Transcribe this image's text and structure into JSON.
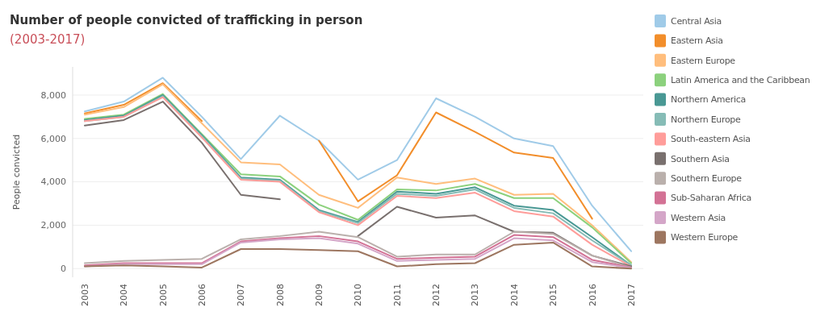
{
  "chart_data": {
    "type": "line",
    "title": "Number of people convicted of trafficking in person",
    "subtitle": "(2003-2017)",
    "ylabel": "People convicted",
    "categories": [
      "2003",
      "2004",
      "2005",
      "2006",
      "2007",
      "2008",
      "2009",
      "2010",
      "2011",
      "2012",
      "2013",
      "2014",
      "2015",
      "2016",
      "2017"
    ],
    "ylim": [
      -400,
      9300
    ],
    "yticks": [
      {
        "value": 0,
        "label": "0"
      },
      {
        "value": 2000,
        "label": "2,000"
      },
      {
        "value": 4000,
        "label": "4,000"
      },
      {
        "value": 6000,
        "label": "6,000"
      },
      {
        "value": 8000,
        "label": "8,000"
      }
    ],
    "grid": "y",
    "legend": "right",
    "marker": "none",
    "line_style": "solid",
    "series": [
      {
        "name": "Central Asia",
        "color": "#a0cbe8",
        "values": [
          7250,
          7700,
          8800,
          7000,
          5050,
          7050,
          5900,
          4100,
          5000,
          7850,
          7000,
          6000,
          5650,
          2900,
          800
        ]
      },
      {
        "name": "Eastern Asia",
        "color": "#f28e2b",
        "values": [
          7150,
          7550,
          8550,
          6800,
          null,
          null,
          5900,
          3100,
          4300,
          7200,
          6300,
          5350,
          5100,
          2300,
          null
        ]
      },
      {
        "name": "Eastern Europe",
        "color": "#ffbe7d",
        "values": [
          7100,
          7450,
          8500,
          6700,
          4900,
          4800,
          3400,
          2800,
          4200,
          3900,
          4150,
          3400,
          3450,
          2000,
          300
        ]
      },
      {
        "name": "Latin America and the Caribbean",
        "color": "#8cd17d",
        "values": [
          6900,
          7100,
          8050,
          6200,
          4350,
          4250,
          2950,
          2250,
          3650,
          3600,
          3900,
          3250,
          3250,
          1900,
          250
        ]
      },
      {
        "name": "Northern America",
        "color": "#499894",
        "values": [
          6850,
          7050,
          8000,
          6150,
          4200,
          4100,
          2700,
          2150,
          3550,
          3450,
          3750,
          2900,
          2700,
          1450,
          150
        ]
      },
      {
        "name": "Northern Europe",
        "color": "#86bcb6",
        "values": [
          6800,
          7000,
          7950,
          6100,
          4150,
          4050,
          2650,
          2100,
          3450,
          3350,
          3650,
          2800,
          2550,
          1300,
          150
        ]
      },
      {
        "name": "South-eastern Asia",
        "color": "#ff9d9a",
        "values": [
          6800,
          7000,
          7900,
          6050,
          4100,
          4000,
          2600,
          2000,
          3350,
          3250,
          3500,
          2650,
          2400,
          1100,
          100
        ]
      },
      {
        "name": "Southern Asia",
        "color": "#79706e",
        "values": [
          6600,
          6850,
          7700,
          5800,
          3400,
          3200,
          null,
          1500,
          2850,
          2350,
          2450,
          1700,
          1650,
          600,
          100
        ]
      },
      {
        "name": "Southern Europe",
        "color": "#bab0ac",
        "values": [
          250,
          350,
          400,
          450,
          1350,
          1500,
          1700,
          1450,
          550,
          650,
          650,
          1700,
          1600,
          600,
          50
        ]
      },
      {
        "name": "Sub-Saharan Africa",
        "color": "#d37295",
        "values": [
          150,
          250,
          250,
          250,
          1250,
          1400,
          1500,
          1250,
          450,
          500,
          550,
          1550,
          1450,
          400,
          50
        ]
      },
      {
        "name": "Western Asia",
        "color": "#d4a6c8",
        "values": [
          100,
          200,
          200,
          200,
          1200,
          1350,
          1400,
          1150,
          350,
          400,
          450,
          1400,
          1300,
          300,
          30
        ]
      },
      {
        "name": "Western Europe",
        "color": "#9d7660",
        "values": [
          100,
          150,
          100,
          50,
          900,
          900,
          850,
          800,
          100,
          200,
          250,
          1100,
          1200,
          100,
          0
        ]
      }
    ]
  }
}
